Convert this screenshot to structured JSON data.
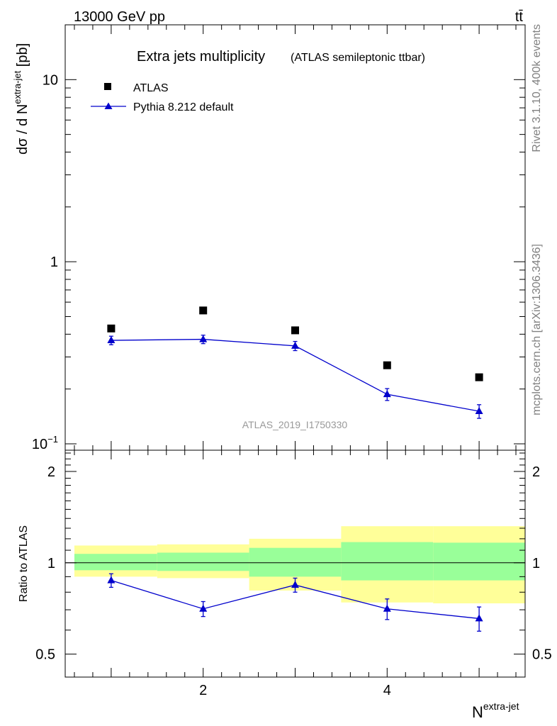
{
  "header": {
    "energy_label": "13000 GeV pp",
    "process_label": "tt̄"
  },
  "side_labels": {
    "rivet": "Rivet 3.1.10,  400k events",
    "mcplots": "mcplots.cern.ch [arXiv:1306.3436]"
  },
  "chart_data": [
    {
      "panel": "main",
      "type": "scatter",
      "title": "Extra jets multiplicity",
      "subtitle": "(ATLAS semileptonic ttbar)",
      "ylabel": "dσ / d N^extra-jet [pb]",
      "yscale": "log",
      "ylim": [
        0.1,
        20
      ],
      "xlim": [
        0.5,
        5.5
      ],
      "y_tick_labels": [
        {
          "value": 0.1,
          "base": "10",
          "exp": "−1"
        },
        {
          "value": 1,
          "text": "1"
        },
        {
          "value": 10,
          "text": "10"
        }
      ],
      "watermark": "ATLAS_2019_I1750330",
      "legend": {
        "position": "top-left",
        "entries": [
          "ATLAS",
          "Pythia 8.212 default"
        ]
      },
      "series": [
        {
          "name": "ATLAS",
          "marker": "square",
          "color": "#000000",
          "x": [
            1,
            2,
            3,
            4,
            5
          ],
          "y": [
            0.43,
            0.54,
            0.42,
            0.27,
            0.232
          ]
        },
        {
          "name": "Pythia 8.212 default",
          "marker": "triangle",
          "color": "#0000cc",
          "x": [
            1,
            2,
            3,
            4,
            5
          ],
          "y": [
            0.37,
            0.375,
            0.345,
            0.187,
            0.151
          ],
          "yerr": [
            0.02,
            0.02,
            0.02,
            0.014,
            0.013
          ]
        }
      ]
    },
    {
      "panel": "ratio",
      "type": "line",
      "ylabel": "Ratio to ATLAS",
      "xlabel": "N^extra-jet",
      "ylim": [
        0.42,
        2.35
      ],
      "xlim": [
        0.5,
        5.5
      ],
      "x_tick_labels": [
        2,
        4
      ],
      "y_tick_labels": [
        "0.5",
        "1",
        "2"
      ],
      "reference_line": 1,
      "bands": {
        "bins": [
          [
            0.6,
            1.5
          ],
          [
            1.5,
            2.5
          ],
          [
            2.5,
            3.5
          ],
          [
            3.5,
            4.5
          ],
          [
            4.5,
            5.5
          ]
        ],
        "inner": {
          "color": "#99ff99",
          "lo": [
            0.945,
            0.94,
            0.9,
            0.875,
            0.875
          ],
          "hi": [
            1.07,
            1.08,
            1.12,
            1.17,
            1.165
          ]
        },
        "outer": {
          "color": "#ffff99",
          "lo": [
            0.9,
            0.89,
            0.81,
            0.74,
            0.735
          ],
          "hi": [
            1.14,
            1.15,
            1.2,
            1.32,
            1.32
          ]
        }
      },
      "series": [
        {
          "name": "Pythia 8.212 default",
          "marker": "triangle",
          "color": "#0000cc",
          "x": [
            1,
            2,
            3,
            4,
            5
          ],
          "y": [
            0.875,
            0.705,
            0.845,
            0.705,
            0.655
          ],
          "yerr": [
            0.045,
            0.04,
            0.045,
            0.055,
            0.06
          ]
        }
      ]
    }
  ]
}
